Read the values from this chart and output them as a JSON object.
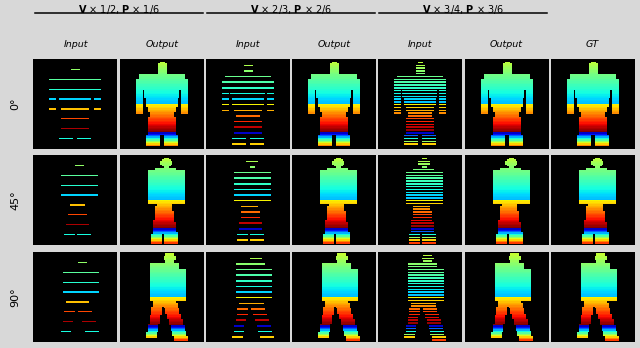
{
  "group_labels": [
    "$\\mathbf{V}$ × 1/2, $\\mathbf{P}$ × 1/6",
    "$\\mathbf{V}$ × 2/3, $\\mathbf{P}$ × 2/6",
    "$\\mathbf{V}$ × 3/4, $\\mathbf{P}$ × 3/6"
  ],
  "col_labels": [
    "Input",
    "Output",
    "Input",
    "Output",
    "Input",
    "Output",
    "GT"
  ],
  "row_labels": [
    "0°",
    "45°",
    "90°"
  ],
  "sparse_steps": [
    7,
    4,
    2
  ],
  "angles": [
    0,
    45,
    90
  ],
  "n_rows": 3,
  "n_cols": 7,
  "fig_bg": "#d8d8d8",
  "fig_width": 6.4,
  "fig_height": 3.48
}
